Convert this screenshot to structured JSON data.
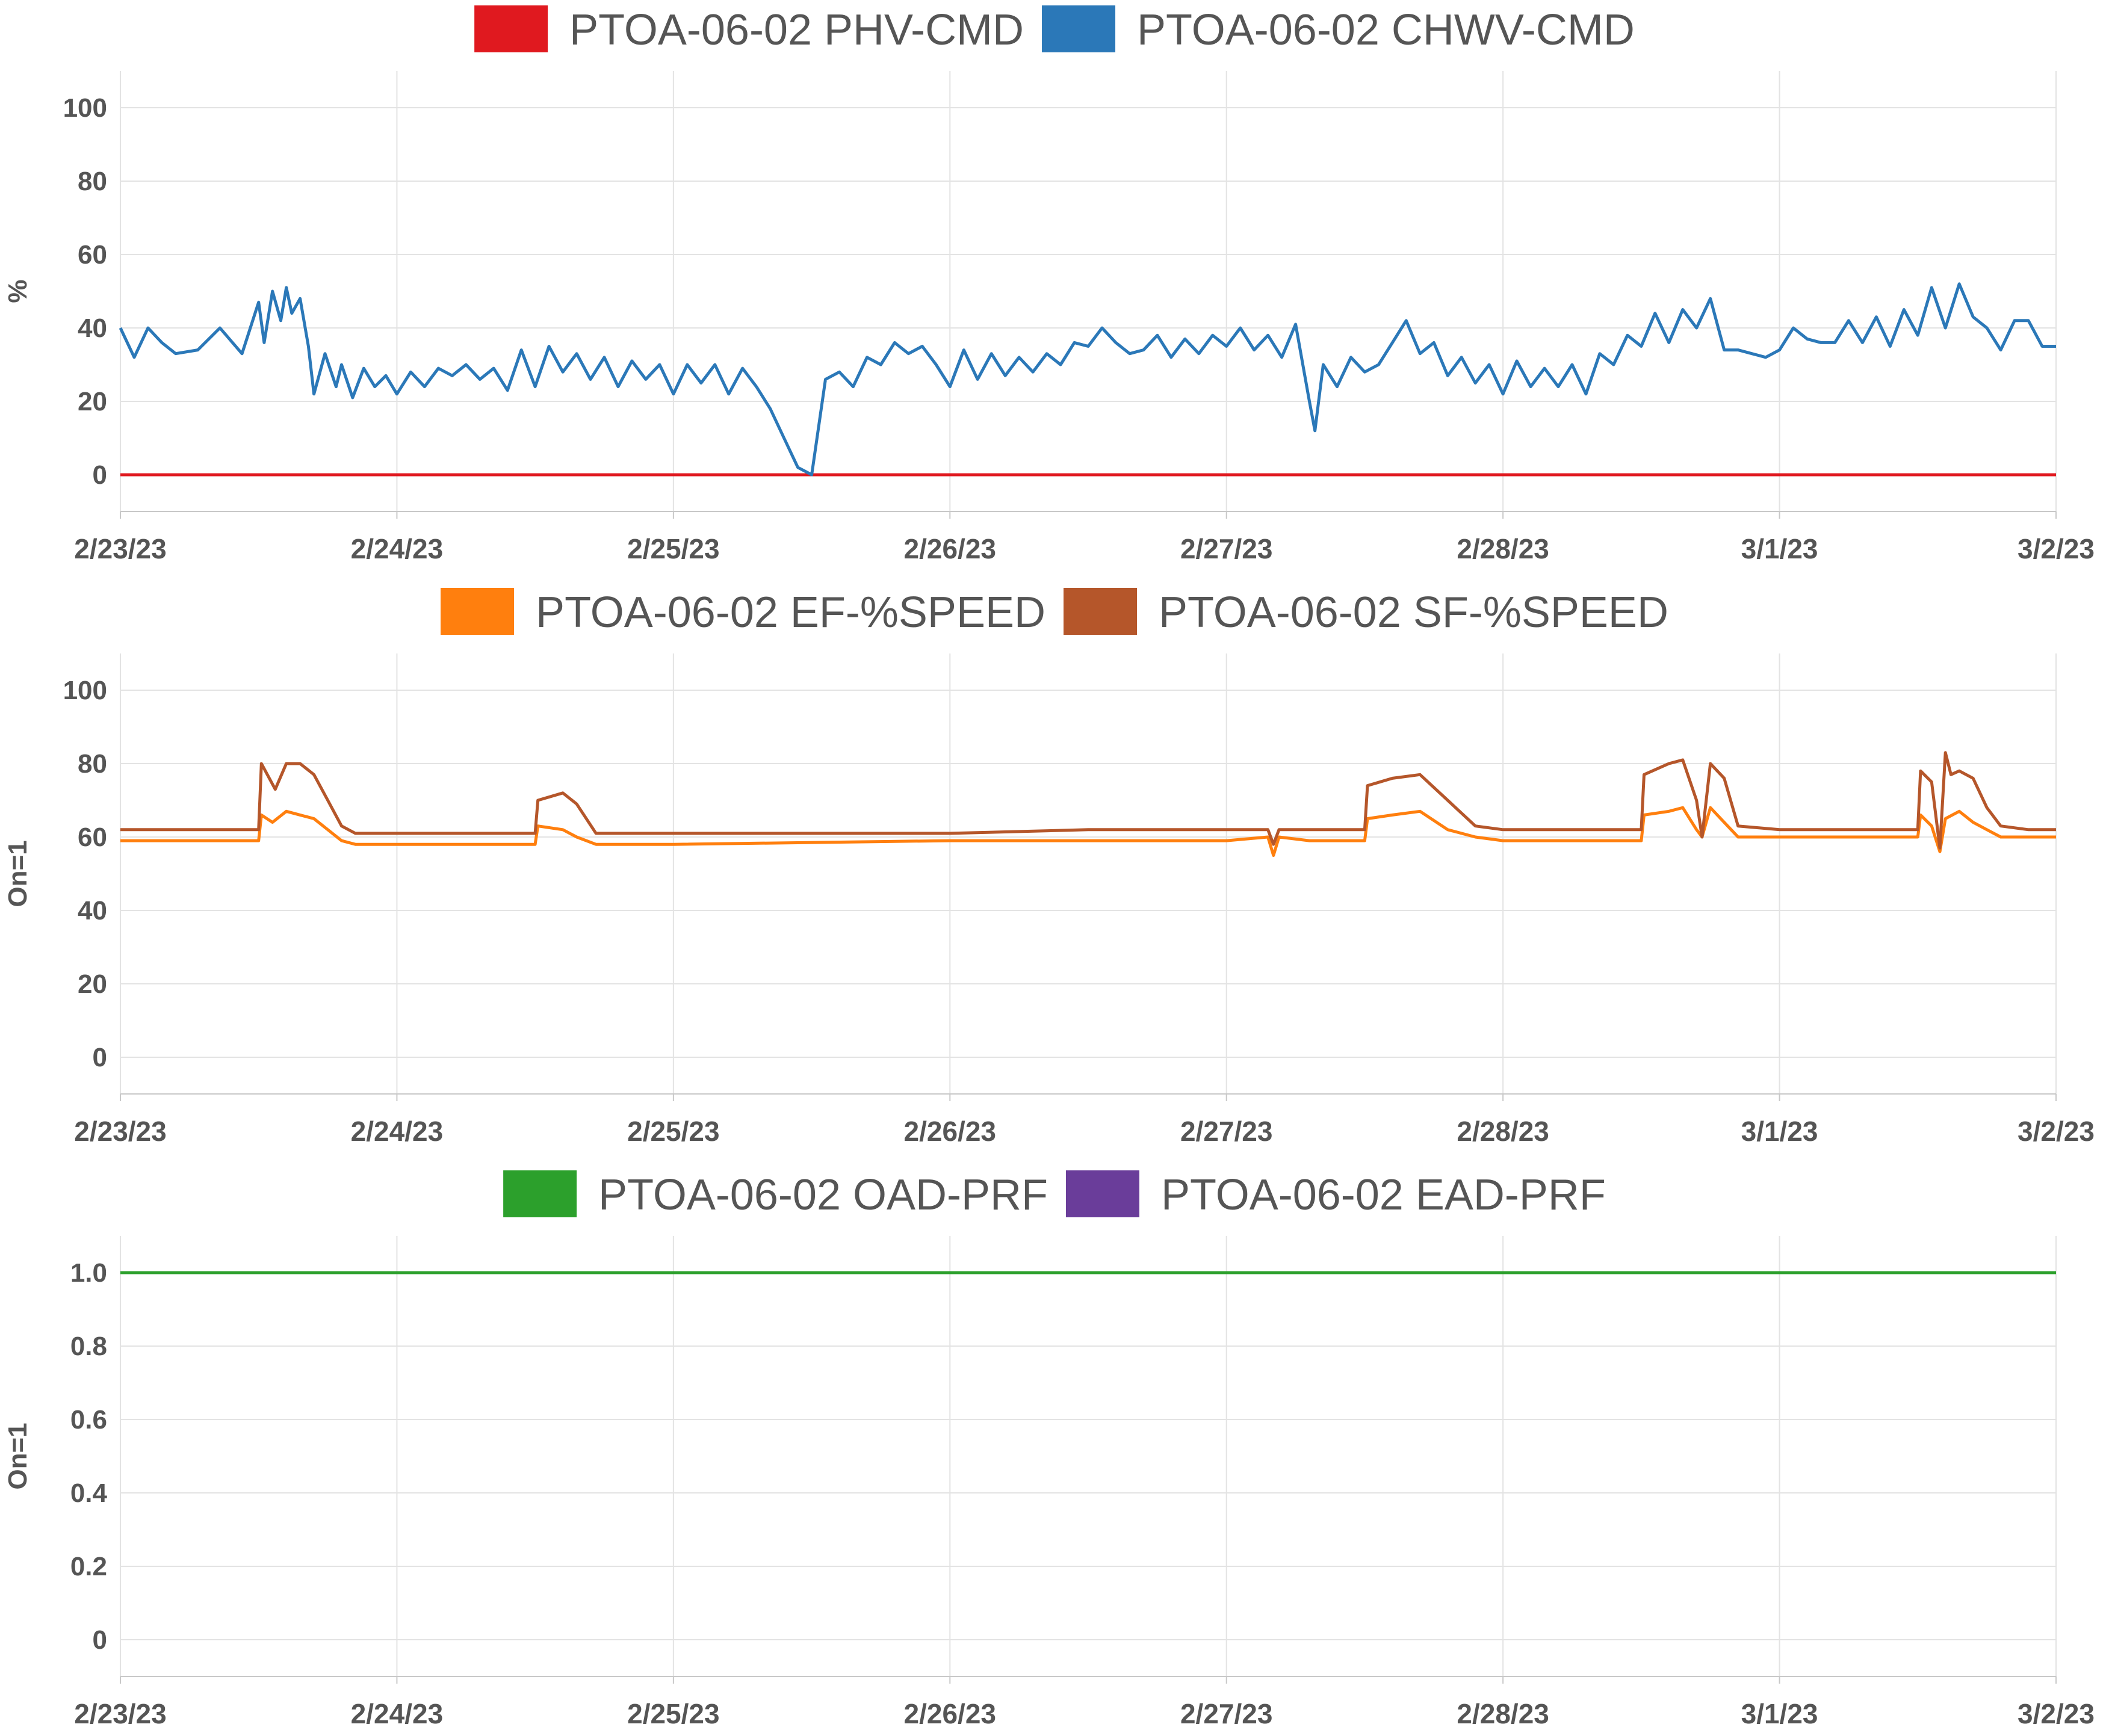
{
  "chart_data": [
    {
      "type": "line",
      "ylabel": "%",
      "ylim": [
        -10,
        110
      ],
      "yticks": [
        0,
        20,
        40,
        60,
        80,
        100
      ],
      "ytick_labels": [
        "0",
        "20",
        "40",
        "60",
        "80",
        "100"
      ],
      "x_day_range": [
        0,
        7
      ],
      "xtick_labels": [
        "2/23/23",
        "2/24/23",
        "2/25/23",
        "2/26/23",
        "2/27/23",
        "2/28/23",
        "3/1/23",
        "3/2/23"
      ],
      "series": [
        {
          "name": "PTOA-06-02 PHV-CMD",
          "color": "#e0191f",
          "x": [
            0,
            7
          ],
          "y": [
            0,
            0
          ]
        },
        {
          "name": "PTOA-06-02 CHWV-CMD",
          "color": "#2b78b8",
          "x": [
            0,
            0.05,
            0.1,
            0.15,
            0.2,
            0.28,
            0.36,
            0.44,
            0.5,
            0.52,
            0.55,
            0.58,
            0.6,
            0.62,
            0.65,
            0.68,
            0.7,
            0.74,
            0.78,
            0.8,
            0.84,
            0.88,
            0.92,
            0.96,
            1.0,
            1.05,
            1.1,
            1.15,
            1.2,
            1.25,
            1.3,
            1.35,
            1.4,
            1.45,
            1.5,
            1.55,
            1.6,
            1.65,
            1.7,
            1.75,
            1.8,
            1.85,
            1.9,
            1.95,
            2.0,
            2.05,
            2.1,
            2.15,
            2.2,
            2.25,
            2.3,
            2.35,
            2.4,
            2.45,
            2.5,
            2.55,
            2.6,
            2.65,
            2.7,
            2.75,
            2.8,
            2.85,
            2.9,
            2.95,
            3.0,
            3.05,
            3.1,
            3.15,
            3.2,
            3.25,
            3.3,
            3.35,
            3.4,
            3.45,
            3.5,
            3.55,
            3.6,
            3.65,
            3.7,
            3.75,
            3.8,
            3.85,
            3.9,
            3.95,
            4.0,
            4.05,
            4.1,
            4.15,
            4.2,
            4.25,
            4.3,
            4.32,
            4.35,
            4.4,
            4.45,
            4.5,
            4.55,
            4.6,
            4.65,
            4.7,
            4.75,
            4.8,
            4.85,
            4.9,
            4.95,
            5.0,
            5.05,
            5.1,
            5.15,
            5.2,
            5.25,
            5.3,
            5.35,
            5.4,
            5.45,
            5.5,
            5.55,
            5.6,
            5.65,
            5.7,
            5.75,
            5.8,
            5.85,
            5.9,
            5.95,
            6.0,
            6.05,
            6.1,
            6.15,
            6.2,
            6.25,
            6.3,
            6.35,
            6.4,
            6.45,
            6.5,
            6.55,
            6.6,
            6.65,
            6.7,
            6.75,
            6.8,
            6.85,
            6.9,
            6.95,
            7.0
          ],
          "y": [
            40,
            32,
            40,
            36,
            33,
            34,
            40,
            33,
            47,
            36,
            50,
            42,
            51,
            44,
            48,
            35,
            22,
            33,
            24,
            30,
            21,
            29,
            24,
            27,
            22,
            28,
            24,
            29,
            27,
            30,
            26,
            29,
            23,
            34,
            24,
            35,
            28,
            33,
            26,
            32,
            24,
            31,
            26,
            30,
            22,
            30,
            25,
            30,
            22,
            29,
            24,
            18,
            10,
            2,
            0,
            26,
            28,
            24,
            32,
            30,
            36,
            33,
            35,
            30,
            24,
            34,
            26,
            33,
            27,
            32,
            28,
            33,
            30,
            36,
            35,
            40,
            36,
            33,
            34,
            38,
            32,
            37,
            33,
            38,
            35,
            40,
            34,
            38,
            32,
            41,
            20,
            12,
            30,
            24,
            32,
            28,
            30,
            36,
            42,
            33,
            36,
            27,
            32,
            25,
            30,
            22,
            31,
            24,
            29,
            24,
            30,
            22,
            33,
            30,
            38,
            35,
            44,
            36,
            45,
            40,
            48,
            34,
            34,
            33,
            32,
            34,
            40,
            37,
            36,
            36,
            42,
            36,
            43,
            35,
            45,
            38,
            51,
            40,
            52,
            43,
            40,
            34,
            42,
            42,
            35,
            35
          ]
        }
      ]
    },
    {
      "type": "line",
      "ylabel": "On=1",
      "ylim": [
        -10,
        110
      ],
      "yticks": [
        0,
        20,
        40,
        60,
        80,
        100
      ],
      "ytick_labels": [
        "0",
        "20",
        "40",
        "60",
        "80",
        "100"
      ],
      "x_day_range": [
        0,
        7
      ],
      "xtick_labels": [
        "2/23/23",
        "2/24/23",
        "2/25/23",
        "2/26/23",
        "2/27/23",
        "2/28/23",
        "3/1/23",
        "3/2/23"
      ],
      "series": [
        {
          "name": "PTOA-06-02 EF-%SPEED",
          "color": "#ff7f0e",
          "x": [
            0,
            0.5,
            0.51,
            0.55,
            0.6,
            0.65,
            0.7,
            0.75,
            0.8,
            0.85,
            1.0,
            1.5,
            1.51,
            1.6,
            1.65,
            1.72,
            1.8,
            2.0,
            3.0,
            3.5,
            4.0,
            4.15,
            4.17,
            4.19,
            4.3,
            4.5,
            4.51,
            4.6,
            4.7,
            4.8,
            4.9,
            5.0,
            5.2,
            5.5,
            5.51,
            5.6,
            5.65,
            5.7,
            5.72,
            5.75,
            5.8,
            5.85,
            6.0,
            6.3,
            6.5,
            6.51,
            6.55,
            6.58,
            6.6,
            6.65,
            6.7,
            6.75,
            6.8,
            6.9,
            7.0
          ],
          "y": [
            59,
            59,
            66,
            64,
            67,
            66,
            65,
            62,
            59,
            58,
            58,
            58,
            63,
            62,
            60,
            58,
            58,
            58,
            59,
            59,
            59,
            60,
            55,
            60,
            59,
            59,
            65,
            66,
            67,
            62,
            60,
            59,
            59,
            59,
            66,
            67,
            68,
            62,
            60,
            68,
            64,
            60,
            60,
            60,
            60,
            66,
            63,
            56,
            65,
            67,
            64,
            62,
            60,
            60,
            60
          ]
        },
        {
          "name": "PTOA-06-02 SF-%SPEED",
          "color": "#b5562a",
          "x": [
            0,
            0.5,
            0.51,
            0.56,
            0.6,
            0.65,
            0.7,
            0.75,
            0.8,
            0.85,
            1.0,
            1.5,
            1.51,
            1.6,
            1.65,
            1.72,
            1.8,
            2.0,
            3.0,
            3.5,
            4.0,
            4.15,
            4.17,
            4.19,
            4.3,
            4.5,
            4.51,
            4.6,
            4.7,
            4.8,
            4.9,
            5.0,
            5.2,
            5.5,
            5.51,
            5.6,
            5.65,
            5.7,
            5.72,
            5.75,
            5.8,
            5.85,
            6.0,
            6.3,
            6.5,
            6.51,
            6.55,
            6.58,
            6.6,
            6.62,
            6.65,
            6.7,
            6.75,
            6.8,
            6.9,
            7.0
          ],
          "y": [
            62,
            62,
            80,
            73,
            80,
            80,
            77,
            70,
            63,
            61,
            61,
            61,
            70,
            72,
            69,
            61,
            61,
            61,
            61,
            62,
            62,
            62,
            58,
            62,
            62,
            62,
            74,
            76,
            77,
            70,
            63,
            62,
            62,
            62,
            77,
            80,
            81,
            70,
            60,
            80,
            76,
            63,
            62,
            62,
            62,
            78,
            75,
            57,
            83,
            77,
            78,
            76,
            68,
            63,
            62,
            62
          ]
        }
      ]
    },
    {
      "type": "line",
      "ylabel": "On=1",
      "ylim": [
        -0.1,
        1.1
      ],
      "yticks": [
        0,
        0.2,
        0.4,
        0.6,
        0.8,
        1.0
      ],
      "ytick_labels": [
        "0",
        "0.2",
        "0.4",
        "0.6",
        "0.8",
        "1.0"
      ],
      "x_day_range": [
        0,
        7
      ],
      "xtick_labels": [
        "2/23/23",
        "2/24/23",
        "2/25/23",
        "2/26/23",
        "2/27/23",
        "2/28/23",
        "3/1/23",
        "3/2/23"
      ],
      "series": [
        {
          "name": "PTOA-06-02 OAD-PRF",
          "color": "#2ca02c",
          "x": [
            0,
            7
          ],
          "y": [
            1,
            1
          ]
        },
        {
          "name": "PTOA-06-02 EAD-PRF",
          "color": "#6a3d9a",
          "x": [],
          "y": []
        }
      ]
    }
  ]
}
